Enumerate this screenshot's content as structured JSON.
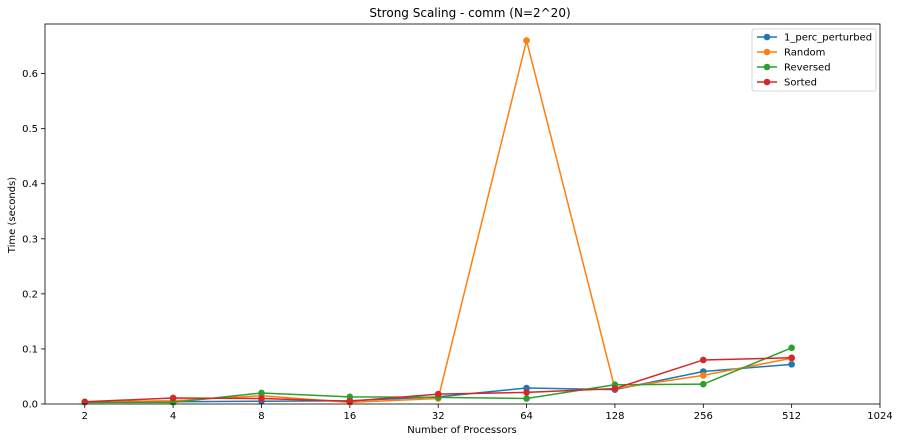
{
  "chart_data": {
    "type": "line",
    "title": "Strong Scaling - comm (N=2^20)",
    "xlabel": "Number of Processors",
    "ylabel": "Time (seconds)",
    "x_scale": "log2",
    "x_ticks": [
      "2",
      "4",
      "8",
      "16",
      "32",
      "64",
      "128",
      "256",
      "512",
      "1024"
    ],
    "x_tick_values": [
      2,
      4,
      8,
      16,
      32,
      64,
      128,
      256,
      512,
      1024
    ],
    "y_ticks": [
      "0.0",
      "0.1",
      "0.2",
      "0.3",
      "0.4",
      "0.5",
      "0.6"
    ],
    "y_tick_values": [
      0,
      0.1,
      0.2,
      0.3,
      0.4,
      0.5,
      0.6
    ],
    "ylim": [
      0,
      0.69
    ],
    "xlim_log2": [
      0.55,
      10.0
    ],
    "grid": false,
    "legend_position": "top-right",
    "x": [
      2,
      4,
      8,
      16,
      32,
      64,
      128,
      256,
      512
    ],
    "series": [
      {
        "name": "1_perc_perturbed",
        "color": "#1f77b4",
        "values": [
          0.003,
          0.004,
          0.005,
          0.006,
          0.013,
          0.029,
          0.026,
          0.059,
          0.072
        ]
      },
      {
        "name": "Random",
        "color": "#ff7f0e",
        "values": [
          0.004,
          0.006,
          0.015,
          0.003,
          0.01,
          0.66,
          0.028,
          0.052,
          0.083
        ]
      },
      {
        "name": "Reversed",
        "color": "#2ca02c",
        "values": [
          0.003,
          0.003,
          0.02,
          0.013,
          0.012,
          0.01,
          0.035,
          0.036,
          0.102
        ]
      },
      {
        "name": "Sorted",
        "color": "#d62728",
        "values": [
          0.004,
          0.011,
          0.01,
          0.005,
          0.018,
          0.021,
          0.028,
          0.08,
          0.084
        ]
      }
    ]
  }
}
